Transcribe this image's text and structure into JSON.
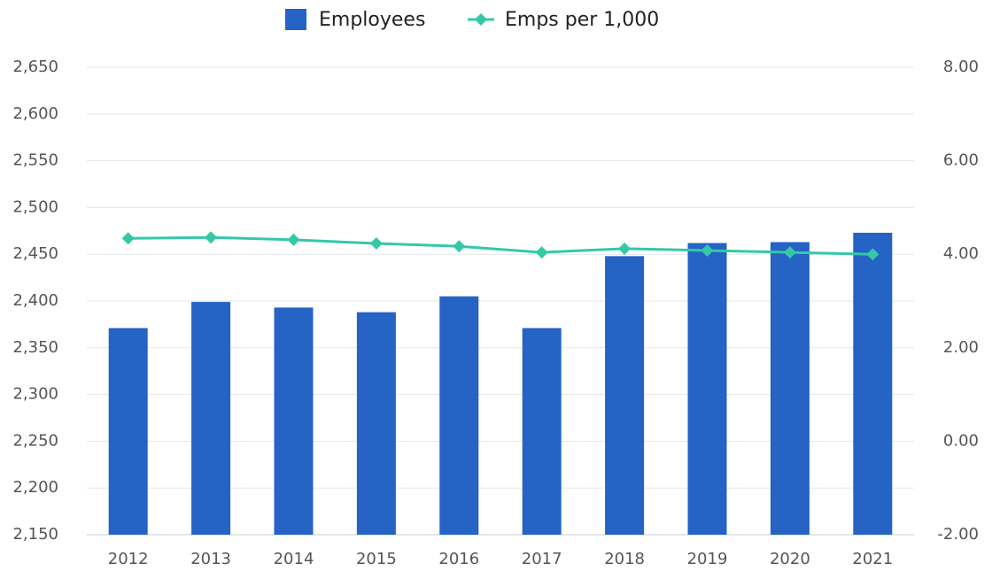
{
  "chart_data": {
    "type": "bar",
    "categories": [
      "2012",
      "2013",
      "2014",
      "2015",
      "2016",
      "2017",
      "2018",
      "2019",
      "2020",
      "2021"
    ],
    "series": [
      {
        "name": "Employees",
        "type": "bar",
        "color": "#2563c4",
        "values": [
          2371,
          2399,
          2393,
          2388,
          2405,
          2371,
          2448,
          2462,
          2463,
          2473
        ]
      },
      {
        "name": "Emps per 1,000",
        "type": "line",
        "axis": "y2",
        "color": "#33c9a6",
        "values": [
          4.34,
          4.36,
          4.31,
          4.23,
          4.17,
          4.04,
          4.12,
          4.08,
          4.04,
          4.0
        ]
      }
    ],
    "ylim": [
      2150,
      2650
    ],
    "yticks": [
      {
        "value": 2150,
        "label": "2,150"
      },
      {
        "value": 2200,
        "label": "2,200"
      },
      {
        "value": 2250,
        "label": "2,250"
      },
      {
        "value": 2300,
        "label": "2,300"
      },
      {
        "value": 2350,
        "label": "2,350"
      },
      {
        "value": 2400,
        "label": "2,400"
      },
      {
        "value": 2450,
        "label": "2,450"
      },
      {
        "value": 2500,
        "label": "2,500"
      },
      {
        "value": 2550,
        "label": "2,550"
      },
      {
        "value": 2600,
        "label": "2,600"
      },
      {
        "value": 2650,
        "label": "2,650"
      }
    ],
    "y2lim": [
      -2,
      8
    ],
    "y2ticks": [
      {
        "value": -2,
        "label": "-2.00"
      },
      {
        "value": 0,
        "label": "0.00"
      },
      {
        "value": 2,
        "label": "2.00"
      },
      {
        "value": 4,
        "label": "4.00"
      },
      {
        "value": 6,
        "label": "6.00"
      },
      {
        "value": 8,
        "label": "8.00"
      }
    ],
    "grid": true,
    "legend": "top"
  }
}
